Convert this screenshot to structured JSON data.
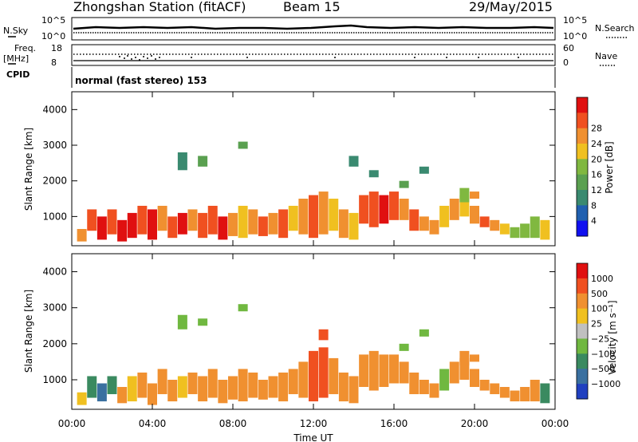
{
  "header": {
    "station": "Zhongshan Station (fitACF)",
    "beam": "Beam 15",
    "date": "29/May/2015"
  },
  "top_panels": {
    "nsky_label": "N.Sky",
    "nsky_ticks": [
      "10^5",
      "10^0"
    ],
    "nsearch_label": "N.Search",
    "nsearch_ticks": [
      "10^5",
      "10^0"
    ],
    "freq_label": "Freq.",
    "freq_unit": "[MHz]",
    "freq_ticks": [
      "18",
      "8"
    ],
    "nave_label": "Nave",
    "nave_ticks": [
      "60",
      "0"
    ],
    "cpid_label": "CPID",
    "cpid_text": "normal (fast stereo) 153"
  },
  "chart_data": [
    {
      "type": "heatmap",
      "name": "power",
      "ylabel": "Slant Range [km]",
      "ylim": [
        180,
        4500
      ],
      "yticks": [
        "1000",
        "2000",
        "3000",
        "4000"
      ],
      "colorbar_label": "Power [dB]",
      "colorbar_ticks": [
        "4",
        "8",
        "12",
        "16",
        "20",
        "24",
        "28"
      ],
      "colors": [
        "#1010f0",
        "#2060b0",
        "#3a8a70",
        "#5aa050",
        "#80b840",
        "#f0c020",
        "#f09030",
        "#f05020",
        "#e01010"
      ],
      "cells": [
        [
          0.5,
          300,
          650,
          6
        ],
        [
          1,
          600,
          1200,
          7
        ],
        [
          1.5,
          350,
          1000,
          8
        ],
        [
          2,
          500,
          1200,
          7
        ],
        [
          2.5,
          300,
          900,
          8
        ],
        [
          3,
          400,
          1100,
          8
        ],
        [
          3.5,
          500,
          1300,
          7
        ],
        [
          4,
          350,
          1200,
          8
        ],
        [
          4.5,
          600,
          1300,
          6
        ],
        [
          5,
          400,
          1000,
          7
        ],
        [
          5.5,
          500,
          1100,
          8
        ],
        [
          6,
          600,
          1200,
          6
        ],
        [
          6.5,
          400,
          1100,
          7
        ],
        [
          7,
          500,
          1300,
          7
        ],
        [
          7.5,
          350,
          1000,
          8
        ],
        [
          8,
          450,
          1100,
          6
        ],
        [
          8.5,
          400,
          1300,
          5
        ],
        [
          9,
          500,
          1200,
          6
        ],
        [
          9.5,
          450,
          1000,
          7
        ],
        [
          10,
          500,
          1100,
          6
        ],
        [
          10.5,
          400,
          1200,
          7
        ],
        [
          11,
          600,
          1300,
          5
        ],
        [
          11.5,
          500,
          1500,
          6
        ],
        [
          12,
          400,
          1600,
          7
        ],
        [
          12.5,
          500,
          1700,
          6
        ],
        [
          13,
          600,
          1500,
          5
        ],
        [
          13.5,
          400,
          1200,
          6
        ],
        [
          14,
          350,
          1100,
          5
        ],
        [
          14.5,
          800,
          1600,
          7
        ],
        [
          15,
          700,
          1700,
          7
        ],
        [
          15.5,
          800,
          1600,
          8
        ],
        [
          16,
          900,
          1700,
          7
        ],
        [
          16.5,
          900,
          1500,
          6
        ],
        [
          17,
          600,
          1200,
          7
        ],
        [
          17.5,
          600,
          1000,
          6
        ],
        [
          18,
          500,
          900,
          6
        ],
        [
          18.5,
          700,
          1300,
          5
        ],
        [
          19,
          900,
          1500,
          6
        ],
        [
          19.5,
          1000,
          1600,
          5
        ],
        [
          20,
          800,
          1300,
          6
        ],
        [
          20.5,
          700,
          1000,
          7
        ],
        [
          21,
          600,
          900,
          6
        ],
        [
          21.5,
          500,
          800,
          5
        ],
        [
          22,
          400,
          700,
          4
        ],
        [
          22.5,
          400,
          800,
          4
        ],
        [
          23,
          400,
          1000,
          4
        ],
        [
          23.5,
          350,
          900,
          5
        ],
        [
          5.5,
          2300,
          2800,
          2
        ],
        [
          6.5,
          2400,
          2700,
          3
        ],
        [
          8.5,
          2900,
          3100,
          3
        ],
        [
          14,
          2400,
          2700,
          2
        ],
        [
          15,
          2100,
          2300,
          2
        ],
        [
          16.5,
          1800,
          2000,
          3
        ],
        [
          17.5,
          2200,
          2400,
          2
        ],
        [
          19.5,
          1400,
          1800,
          4
        ],
        [
          20,
          1500,
          1700,
          6
        ]
      ]
    },
    {
      "type": "heatmap",
      "name": "velocity",
      "ylabel": "Slant Range [km]",
      "ylim": [
        180,
        4500
      ],
      "yticks": [
        "1000",
        "2000",
        "3000",
        "4000"
      ],
      "xlabel": "Time UT",
      "xticks": [
        "00:00",
        "04:00",
        "08:00",
        "12:00",
        "16:00",
        "20:00",
        "00:00"
      ],
      "colorbar_label": "Velocity [m s⁻¹]",
      "colorbar_ticks": [
        "1000",
        "500",
        "100",
        "25",
        "−25",
        "−100",
        "−500",
        "−1000"
      ],
      "colors": [
        "#2040c0",
        "#3a70a0",
        "#3a8a60",
        "#70b840",
        "#c0c0c0",
        "#f0c020",
        "#f09030",
        "#f05020",
        "#e01010"
      ],
      "cells": [
        [
          0.5,
          300,
          650,
          5
        ],
        [
          1,
          500,
          1100,
          2
        ],
        [
          1.5,
          400,
          900,
          1
        ],
        [
          2,
          600,
          1100,
          2
        ],
        [
          2.5,
          350,
          800,
          6
        ],
        [
          3,
          400,
          1100,
          5
        ],
        [
          3.5,
          500,
          1200,
          6
        ],
        [
          4,
          300,
          900,
          6
        ],
        [
          4.5,
          600,
          1300,
          6
        ],
        [
          5,
          400,
          1000,
          6
        ],
        [
          5.5,
          500,
          1100,
          5
        ],
        [
          6,
          600,
          1200,
          6
        ],
        [
          6.5,
          400,
          1100,
          6
        ],
        [
          7,
          500,
          1300,
          6
        ],
        [
          7.5,
          350,
          1000,
          6
        ],
        [
          8,
          450,
          1100,
          6
        ],
        [
          8.5,
          400,
          1300,
          6
        ],
        [
          9,
          500,
          1200,
          6
        ],
        [
          9.5,
          450,
          1000,
          6
        ],
        [
          10,
          500,
          1100,
          6
        ],
        [
          10.5,
          400,
          1200,
          6
        ],
        [
          11,
          600,
          1300,
          6
        ],
        [
          11.5,
          500,
          1500,
          6
        ],
        [
          12,
          400,
          1800,
          7
        ],
        [
          12.5,
          500,
          1900,
          7
        ],
        [
          13,
          600,
          1600,
          6
        ],
        [
          13.5,
          400,
          1200,
          6
        ],
        [
          14,
          350,
          1100,
          6
        ],
        [
          14.5,
          800,
          1700,
          6
        ],
        [
          15,
          700,
          1800,
          6
        ],
        [
          15.5,
          800,
          1700,
          6
        ],
        [
          16,
          900,
          1700,
          6
        ],
        [
          16.5,
          900,
          1500,
          6
        ],
        [
          17,
          600,
          1200,
          6
        ],
        [
          17.5,
          600,
          1000,
          6
        ],
        [
          18,
          500,
          900,
          6
        ],
        [
          18.5,
          700,
          1300,
          3
        ],
        [
          19,
          900,
          1500,
          6
        ],
        [
          19.5,
          1000,
          1600,
          6
        ],
        [
          20,
          800,
          1300,
          6
        ],
        [
          20.5,
          700,
          1000,
          6
        ],
        [
          21,
          600,
          900,
          6
        ],
        [
          21.5,
          500,
          800,
          6
        ],
        [
          22,
          400,
          700,
          6
        ],
        [
          22.5,
          400,
          800,
          6
        ],
        [
          23,
          400,
          1000,
          6
        ],
        [
          23.5,
          350,
          900,
          2
        ],
        [
          5.5,
          2400,
          2800,
          3
        ],
        [
          6.5,
          2500,
          2700,
          3
        ],
        [
          8.5,
          2900,
          3100,
          3
        ],
        [
          12.5,
          2100,
          2400,
          7
        ],
        [
          16.5,
          1800,
          2000,
          3
        ],
        [
          17.5,
          2200,
          2400,
          3
        ],
        [
          19.5,
          1400,
          1800,
          6
        ],
        [
          20,
          1500,
          1700,
          6
        ]
      ]
    }
  ]
}
